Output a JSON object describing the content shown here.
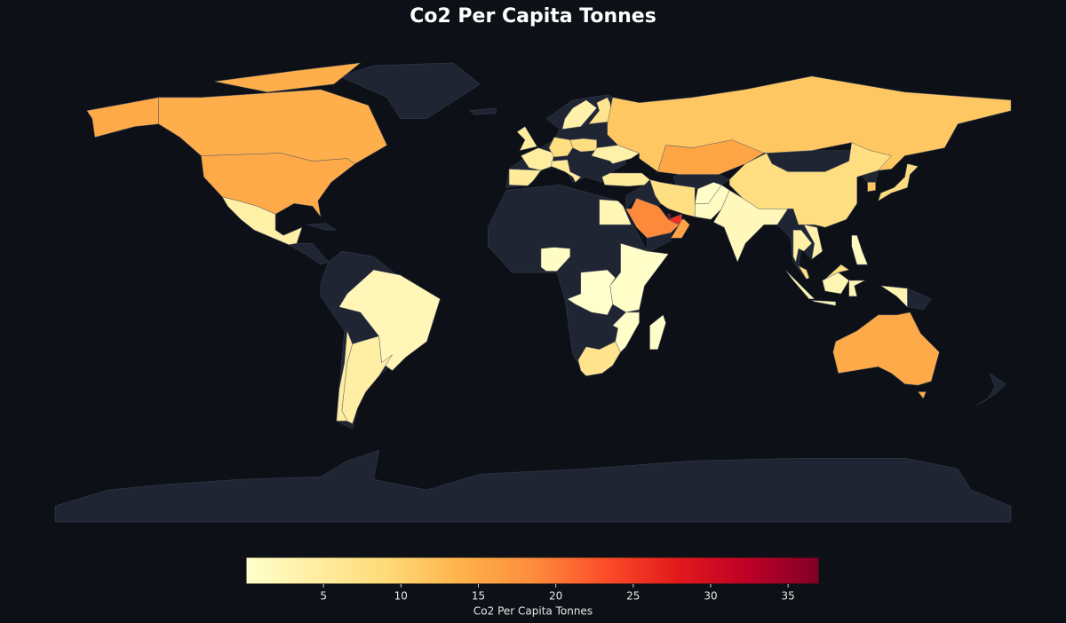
{
  "chart_data": {
    "type": "choropleth",
    "title": "Co2 Per Capita Tonnes",
    "colorbar_title": "Co2 Per Capita Tonnes",
    "colorscale": [
      "#ffffcc",
      "#ffeda0",
      "#fed976",
      "#feb24c",
      "#fd8d3c",
      "#fc4e2a",
      "#e31a1c",
      "#bd0026",
      "#800026"
    ],
    "clim": [
      0,
      37
    ],
    "cticks": [
      5,
      10,
      15,
      20,
      25,
      30,
      35
    ],
    "values": [
      14.9,
      14.3,
      3.8,
      2.2,
      4.2,
      4.4,
      2.3,
      0.6,
      0.3,
      0.04,
      6.7,
      0.3,
      0.1,
      4.6,
      5.2,
      4.7,
      8.0,
      5.4,
      8.1,
      3.6,
      6.5,
      3.8,
      5.1,
      11.4,
      15.5,
      8.0,
      1.9,
      0.9,
      0.3,
      7.8,
      18.7,
      25.8,
      15.7,
      3.8,
      3.5,
      8.0,
      2.6,
      1.3,
      8.5,
      11.6,
      14.9,
      37
    ]
  }
}
